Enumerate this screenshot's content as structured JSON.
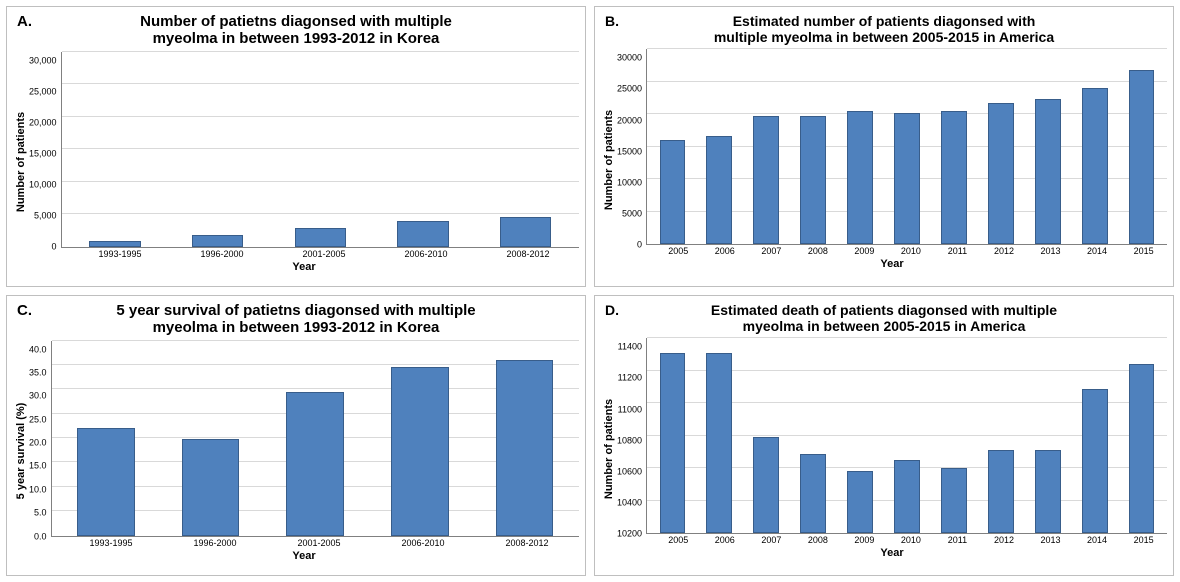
{
  "layout": {
    "grid": "2x2",
    "background_color": "#ffffff",
    "panel_border_color": "#bfbfbf",
    "grid_color": "#d9d9d9",
    "axis_color": "#808080"
  },
  "panels": {
    "A": {
      "letter": "A.",
      "title_line1": "Number of patietns diagonsed with multiple",
      "title_line2": "myeolma in between 1993-2012 in Korea",
      "title_fontsize": 15,
      "xlabel": "Year",
      "ylabel": "Number of patients",
      "label_fontsize": 11,
      "tick_fontsize": 9,
      "type": "bar",
      "bar_color": "#4f81bd",
      "bar_border": "#385d8a",
      "bar_width_pct": 50,
      "ylim": [
        0,
        30000
      ],
      "ytick_step": 5000,
      "ytick_format": "comma",
      "categories": [
        "1993-1995",
        "1996-2000",
        "2001-2005",
        "2006-2010",
        "2008-2012"
      ],
      "values": [
        800,
        1700,
        2800,
        4000,
        4600
      ]
    },
    "B": {
      "letter": "B.",
      "title_line1": "Estimated number of patients diagonsed with",
      "title_line2": "multiple myeolma in between 2005-2015 in America",
      "title_fontsize": 14,
      "xlabel": "Year",
      "ylabel": "Number of patients",
      "label_fontsize": 11,
      "tick_fontsize": 9,
      "type": "bar",
      "bar_color": "#4f81bd",
      "bar_border": "#385d8a",
      "bar_width_pct": 55,
      "ylim": [
        0,
        30000
      ],
      "ytick_step": 5000,
      "ytick_format": "plain",
      "categories": [
        "2005",
        "2006",
        "2007",
        "2008",
        "2009",
        "2010",
        "2011",
        "2012",
        "2013",
        "2014",
        "2015"
      ],
      "values": [
        16000,
        16600,
        19800,
        19800,
        20500,
        20200,
        20500,
        21700,
        22300,
        24000,
        26800
      ]
    },
    "C": {
      "letter": "C.",
      "title_line1": "5 year survival of patietns diagonsed with multiple",
      "title_line2": "myeolma in between 1993-2012 in Korea",
      "title_fontsize": 15,
      "xlabel": "Year",
      "ylabel": "5 year survival (%)",
      "label_fontsize": 11,
      "tick_fontsize": 9,
      "type": "bar",
      "bar_color": "#4f81bd",
      "bar_border": "#385d8a",
      "bar_width_pct": 55,
      "ylim": [
        0,
        40
      ],
      "ytick_step": 5,
      "ytick_format": "decimal1",
      "categories": [
        "1993-1995",
        "1996-2000",
        "2001-2005",
        "2006-2010",
        "2008-2012"
      ],
      "values": [
        22.0,
        19.8,
        29.5,
        34.5,
        36.0
      ]
    },
    "D": {
      "letter": "D.",
      "title_line1": "Estimated death of patients diagonsed with multiple",
      "title_line2": "myeolma in between 2005-2015 in America",
      "title_fontsize": 14,
      "xlabel": "Year",
      "ylabel": "Number of patients",
      "label_fontsize": 11,
      "tick_fontsize": 9,
      "type": "bar",
      "bar_color": "#4f81bd",
      "bar_border": "#385d8a",
      "bar_width_pct": 55,
      "ylim": [
        10200,
        11400
      ],
      "ytick_step": 200,
      "ytick_format": "plain",
      "categories": [
        "2005",
        "2006",
        "2007",
        "2008",
        "2009",
        "2010",
        "2011",
        "2012",
        "2013",
        "2014",
        "2015"
      ],
      "values": [
        11310,
        11310,
        10790,
        10690,
        10580,
        10650,
        10600,
        10710,
        10710,
        11090,
        11240
      ]
    }
  }
}
